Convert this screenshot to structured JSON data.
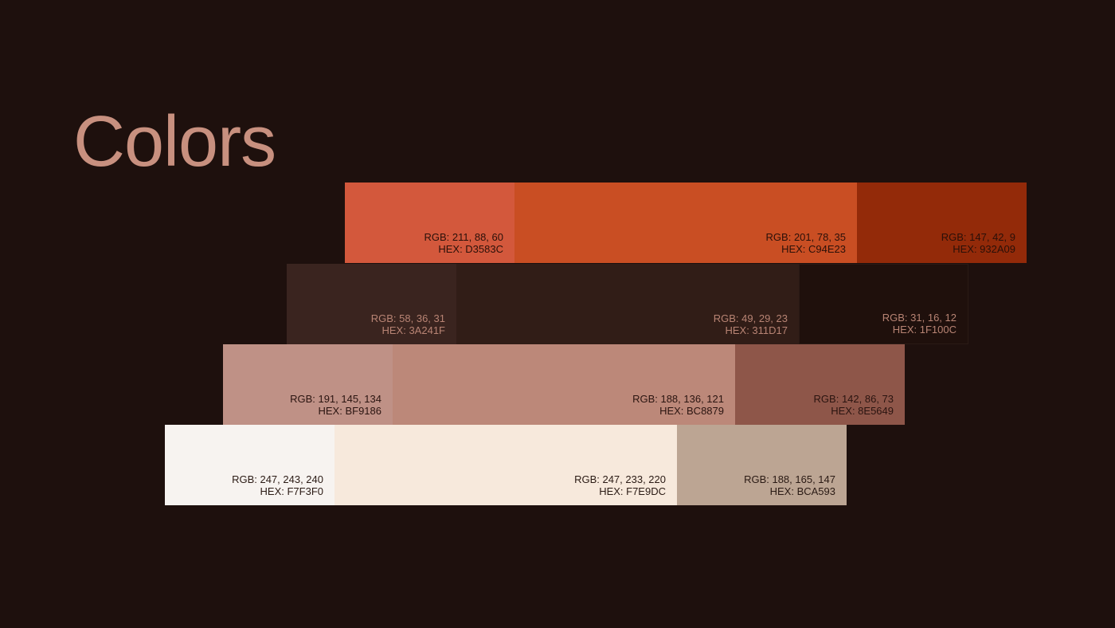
{
  "title": "Colors",
  "rows": [
    {
      "text_color": "#2a1009",
      "swatches": [
        {
          "hex": "#D3583C",
          "rgb_label": "RGB: 211, 88, 60",
          "hex_label": "HEX: D3583C"
        },
        {
          "hex": "#C94E23",
          "rgb_label": "RGB: 201, 78, 35",
          "hex_label": "HEX: C94E23"
        },
        {
          "hex": "#932A09",
          "rgb_label": "RGB: 147, 42, 9",
          "hex_label": "HEX: 932A09"
        }
      ]
    },
    {
      "text_color": "#b88474",
      "swatches": [
        {
          "hex": "#3A241F",
          "rgb_label": "RGB: 58, 36, 31",
          "hex_label": "HEX: 3A241F"
        },
        {
          "hex": "#311D17",
          "rgb_label": "RGB: 49, 29, 23",
          "hex_label": "HEX: 311D17"
        },
        {
          "hex": "#1F100C",
          "rgb_label": "RGB: 31, 16, 12",
          "hex_label": "HEX: 1F100C"
        }
      ]
    },
    {
      "text_color": "#2a1410",
      "swatches": [
        {
          "hex": "#BF9186",
          "rgb_label": "RGB: 191, 145, 134",
          "hex_label": "HEX: BF9186"
        },
        {
          "hex": "#BC8879",
          "rgb_label": "RGB: 188, 136, 121",
          "hex_label": "HEX: BC8879"
        },
        {
          "hex": "#8E5649",
          "rgb_label": "RGB: 142, 86, 73",
          "hex_label": "HEX: 8E5649"
        }
      ]
    },
    {
      "text_color": "#2a1a14",
      "swatches": [
        {
          "hex": "#F7F3F0",
          "rgb_label": "RGB: 247, 243, 240",
          "hex_label": "HEX: F7F3F0"
        },
        {
          "hex": "#F7E9DC",
          "rgb_label": "RGB: 247, 233, 220",
          "hex_label": "HEX: F7E9DC"
        },
        {
          "hex": "#BCA593",
          "rgb_label": "RGB: 188, 165, 147",
          "hex_label": "HEX: BCA593"
        }
      ]
    }
  ]
}
